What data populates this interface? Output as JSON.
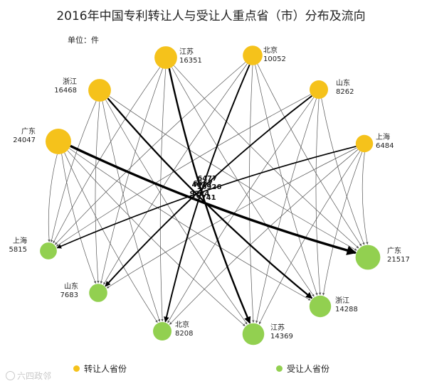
{
  "title": "2016年中国专利转让人与受让人重点省（市）分布及流向",
  "unit": "单位：件",
  "colors": {
    "source": "#F5C21B",
    "target": "#92D050",
    "edge": "#555555",
    "major_edge": "#000000"
  },
  "legend": {
    "source_label": "转让人省份",
    "target_label": "受让人省份"
  },
  "watermark": "六四政邻",
  "sources": [
    {
      "name": "江苏",
      "value": "16351"
    },
    {
      "name": "北京",
      "value": "10052"
    },
    {
      "name": "浙江",
      "value": "16468"
    },
    {
      "name": "山东",
      "value": "8262"
    },
    {
      "name": "广东",
      "value": "24047"
    },
    {
      "name": "上海",
      "value": "6484"
    }
  ],
  "targets": [
    {
      "name": "上海",
      "value": "5815"
    },
    {
      "name": "广东",
      "value": "21517"
    },
    {
      "name": "山东",
      "value": "7683"
    },
    {
      "name": "浙江",
      "value": "14288"
    },
    {
      "name": "北京",
      "value": "8208"
    },
    {
      "name": "江苏",
      "value": "14369"
    }
  ],
  "major_flows": [
    {
      "from": "广东",
      "to": "广东",
      "value": "19741"
    },
    {
      "from": "江苏",
      "to": "江苏",
      "value": "10926"
    },
    {
      "from": "浙江",
      "to": "浙江",
      "value": "9724"
    },
    {
      "from": "北京",
      "to": "北京",
      "value": "6657"
    },
    {
      "from": "山东",
      "to": "山东",
      "value": "6477"
    },
    {
      "from": "上海",
      "to": "上海",
      "value": "4073"
    }
  ]
}
